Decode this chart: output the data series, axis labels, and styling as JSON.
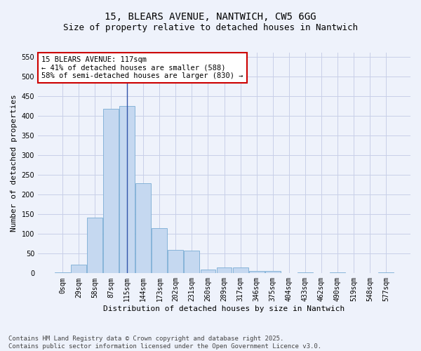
{
  "title": "15, BLEARS AVENUE, NANTWICH, CW5 6GG",
  "subtitle": "Size of property relative to detached houses in Nantwich",
  "xlabel": "Distribution of detached houses by size in Nantwich",
  "ylabel": "Number of detached properties",
  "bar_color": "#c5d8f0",
  "bar_edge_color": "#7aadd4",
  "background_color": "#eef2fb",
  "grid_color": "#c8cfe8",
  "annotation_line_color": "#3355aa",
  "annotation_box_facecolor": "#ffffff",
  "annotation_box_edge": "#cc0000",
  "bin_labels": [
    "0sqm",
    "29sqm",
    "58sqm",
    "87sqm",
    "115sqm",
    "144sqm",
    "173sqm",
    "202sqm",
    "231sqm",
    "260sqm",
    "289sqm",
    "317sqm",
    "346sqm",
    "375sqm",
    "404sqm",
    "433sqm",
    "462sqm",
    "490sqm",
    "519sqm",
    "548sqm",
    "577sqm"
  ],
  "bar_values": [
    3,
    22,
    142,
    418,
    424,
    228,
    115,
    59,
    58,
    10,
    14,
    14,
    6,
    6,
    0,
    3,
    0,
    3,
    0,
    0,
    2
  ],
  "vline_x": 4,
  "ylim": [
    0,
    560
  ],
  "yticks": [
    0,
    50,
    100,
    150,
    200,
    250,
    300,
    350,
    400,
    450,
    500,
    550
  ],
  "annotation_line1": "15 BLEARS AVENUE: 117sqm",
  "annotation_line2": "← 41% of detached houses are smaller (588)",
  "annotation_line3": "58% of semi-detached houses are larger (830) →",
  "footnote_line1": "Contains HM Land Registry data © Crown copyright and database right 2025.",
  "footnote_line2": "Contains public sector information licensed under the Open Government Licence v3.0.",
  "title_fontsize": 10,
  "subtitle_fontsize": 9,
  "axis_label_fontsize": 8,
  "tick_fontsize": 7,
  "annotation_fontsize": 7.5,
  "footnote_fontsize": 6.5
}
